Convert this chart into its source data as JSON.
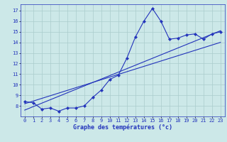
{
  "background_color": "#cce8e8",
  "grid_color": "#aacccc",
  "line_color": "#2233bb",
  "xlim": [
    -0.5,
    23.5
  ],
  "ylim": [
    7.0,
    17.6
  ],
  "xticks": [
    0,
    1,
    2,
    3,
    4,
    5,
    6,
    7,
    8,
    9,
    10,
    11,
    12,
    13,
    14,
    15,
    16,
    17,
    18,
    19,
    20,
    21,
    22,
    23
  ],
  "yticks": [
    8,
    9,
    10,
    11,
    12,
    13,
    14,
    15,
    16,
    17
  ],
  "curve1_x": [
    0,
    1,
    2,
    3,
    4,
    5,
    6,
    7,
    8,
    9,
    10,
    11,
    12,
    13,
    14,
    15,
    16,
    17,
    18,
    19,
    20,
    21,
    22,
    23
  ],
  "curve1_y": [
    8.4,
    8.3,
    7.7,
    7.8,
    7.5,
    7.8,
    7.8,
    8.0,
    8.8,
    9.5,
    10.5,
    10.9,
    12.5,
    14.5,
    16.0,
    17.2,
    16.0,
    14.3,
    14.4,
    14.7,
    14.8,
    14.3,
    14.8,
    15.0
  ],
  "line2_x": [
    0,
    23
  ],
  "line2_y": [
    8.2,
    14.0
  ],
  "line3_x": [
    0,
    23
  ],
  "line3_y": [
    7.6,
    15.1
  ],
  "xlabel": "Graphe des températures (°c)",
  "xlabel_fontsize": 6.0,
  "tick_fontsize": 5.0
}
